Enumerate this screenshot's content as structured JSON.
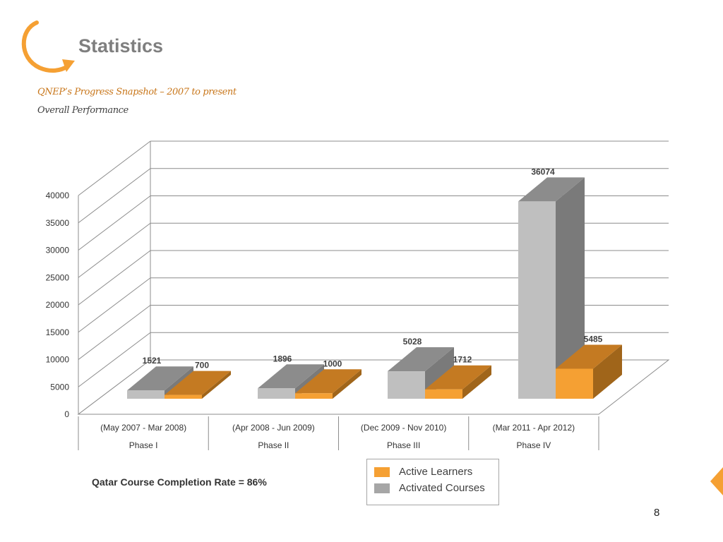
{
  "header": {
    "title": "Statistics",
    "subtitle_1": "QNEP’s Progress Snapshot – 2007 to present",
    "subtitle_2": "Overall Performance",
    "logo_icon": "orange-arrow-arc-icon"
  },
  "chart_data": {
    "type": "bar",
    "style": "3d-column",
    "categories": [
      {
        "period": "(May 2007 - Mar 2008)",
        "phase": "Phase I"
      },
      {
        "period": "(Apr 2008 - Jun 2009)",
        "phase": "Phase II"
      },
      {
        "period": "(Dec 2009 - Nov 2010)",
        "phase": "Phase III"
      },
      {
        "period": "(Mar 2011 - Apr 2012)",
        "phase": "Phase IV"
      }
    ],
    "series": [
      {
        "name": "Activated Courses",
        "color": "#bfbfbf",
        "values": [
          1521,
          1896,
          5028,
          36074
        ]
      },
      {
        "name": "Active Learners",
        "color": "#f5a033",
        "values": [
          700,
          1000,
          1712,
          5485
        ]
      }
    ],
    "y_ticks": [
      0,
      5000,
      10000,
      15000,
      20000,
      25000,
      30000,
      35000,
      40000
    ],
    "ylim": [
      0,
      40000
    ],
    "grid": true,
    "legend_order": [
      "Active Learners",
      "Activated Courses"
    ],
    "legend_position": "bottom-center"
  },
  "footer": {
    "note": "Qatar Course Completion Rate = 86%",
    "page_number": "8"
  },
  "colors": {
    "accent": "#f5a033",
    "title_gray": "#7f7f7f"
  }
}
